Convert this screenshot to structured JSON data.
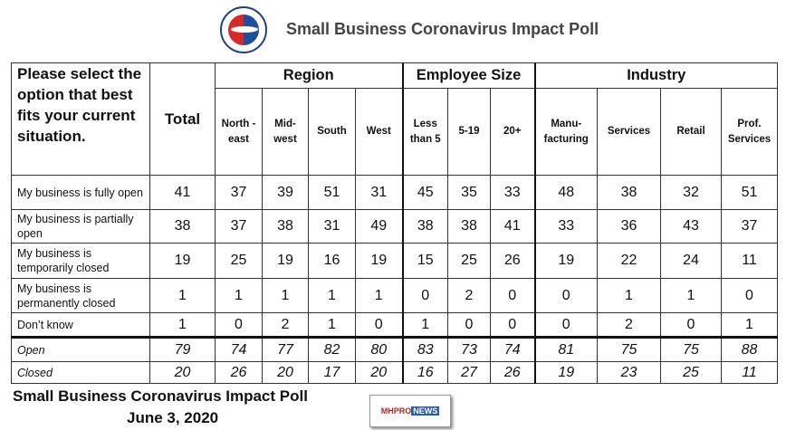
{
  "header": {
    "title": "Small Business Coronavirus Impact Poll",
    "logo_text": "The Spirit of Enterprise - U.S. Chamber of Commerce"
  },
  "table": {
    "question": "Please select the option that best fits your current situation.",
    "total_label": "Total",
    "groups": [
      {
        "label": "Region"
      },
      {
        "label": "Employee Size"
      },
      {
        "label": "Industry"
      }
    ],
    "columns": [
      "North -east",
      "Mid- west",
      "South",
      "West",
      "Less than 5",
      "5-19",
      "20+",
      "Manu- facturing",
      "Services",
      "Retail",
      "Prof. Services"
    ],
    "rows": [
      {
        "label": "My business is fully open",
        "values": [
          "41",
          "37",
          "39",
          "51",
          "31",
          "45",
          "35",
          "33",
          "48",
          "38",
          "32",
          "51"
        ]
      },
      {
        "label": "My business is partially open",
        "values": [
          "38",
          "37",
          "38",
          "31",
          "49",
          "38",
          "38",
          "41",
          "33",
          "36",
          "43",
          "37"
        ]
      },
      {
        "label": "My business is temporarily closed",
        "values": [
          "19",
          "25",
          "19",
          "16",
          "19",
          "15",
          "25",
          "26",
          "19",
          "22",
          "24",
          "11"
        ]
      },
      {
        "label": "My business is permanently closed",
        "values": [
          "1",
          "1",
          "1",
          "1",
          "1",
          "0",
          "2",
          "0",
          "0",
          "1",
          "1",
          "0"
        ]
      },
      {
        "label": "Don’t know",
        "values": [
          "1",
          "0",
          "2",
          "1",
          "0",
          "1",
          "0",
          "0",
          "0",
          "2",
          "0",
          "1"
        ]
      },
      {
        "label": "Open",
        "values": [
          "79",
          "74",
          "77",
          "82",
          "80",
          "83",
          "73",
          "74",
          "81",
          "75",
          "75",
          "88"
        ]
      },
      {
        "label": "Closed",
        "values": [
          "20",
          "26",
          "20",
          "17",
          "20",
          "16",
          "27",
          "26",
          "19",
          "23",
          "25",
          "11"
        ]
      }
    ]
  },
  "footer": {
    "title": "Small Business Coronavirus Impact Poll",
    "date": "June 3, 2020",
    "badge_a": "MHPRO",
    "badge_b": "NEWS"
  }
}
